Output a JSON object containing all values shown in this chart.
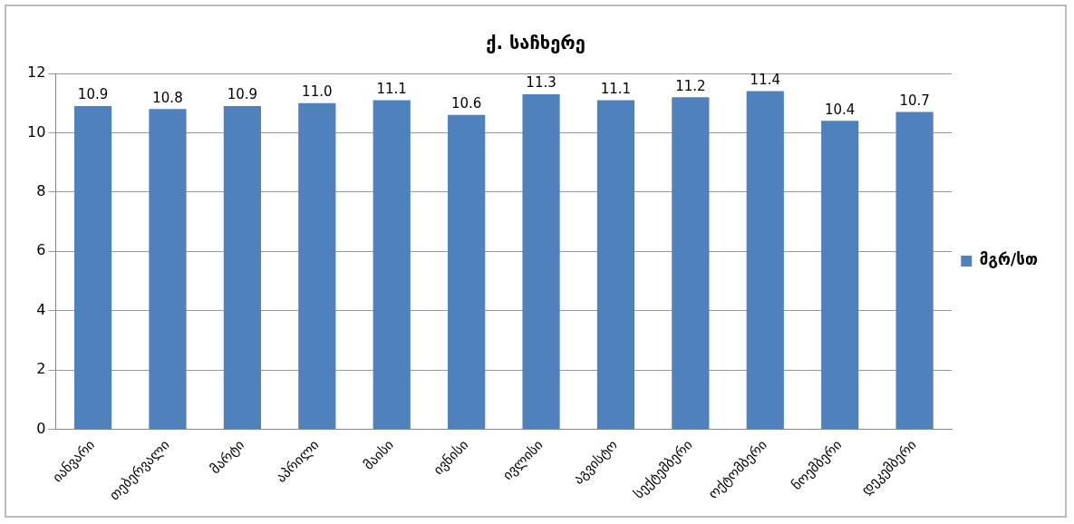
{
  "chart_data": {
    "type": "bar",
    "title": "ქ. საჩხერე",
    "categories": [
      "იანვარი",
      "თებერვალი",
      "მარტი",
      "აპრილი",
      "მაისი",
      "ივნისი",
      "ივლისი",
      "აგვისტო",
      "სექტემბერი",
      "ოქტომბერი",
      "ნოემბერი",
      "დეკემბერი"
    ],
    "series": [
      {
        "name": "მგრ/სთ",
        "color": "#4f81bd",
        "values": [
          10.9,
          10.8,
          10.9,
          11.0,
          11.1,
          10.6,
          11.3,
          11.1,
          11.2,
          11.4,
          10.4,
          10.7
        ]
      }
    ],
    "value_labels": [
      "10.9",
      "10.8",
      "10.9",
      "11.0",
      "11.1",
      "10.6",
      "11.3",
      "11.1",
      "11.2",
      "11.4",
      "10.4",
      "10.7"
    ],
    "ylim": [
      0,
      12
    ],
    "yticks": [
      0,
      2,
      4,
      6,
      8,
      10,
      12
    ],
    "grid": "y",
    "legend": "right"
  }
}
